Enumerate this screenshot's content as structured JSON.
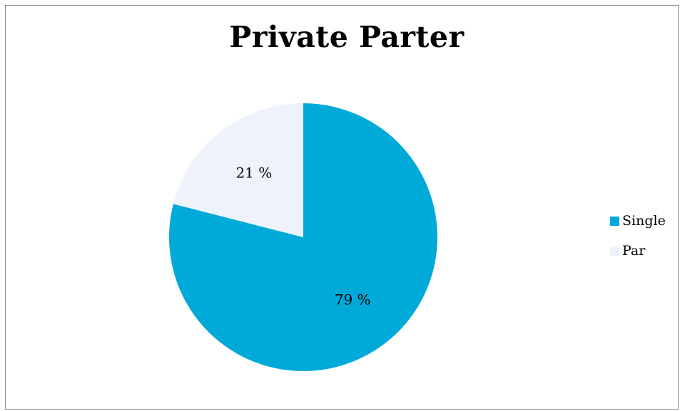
{
  "chart_data": {
    "type": "pie",
    "title": "Private Parter",
    "categories": [
      "Single",
      "Par"
    ],
    "values": [
      79,
      21
    ],
    "data_labels": [
      "79 %",
      "21 %"
    ],
    "colors": [
      "#00aad8",
      "#eef2fb"
    ],
    "legend_position": "right"
  }
}
